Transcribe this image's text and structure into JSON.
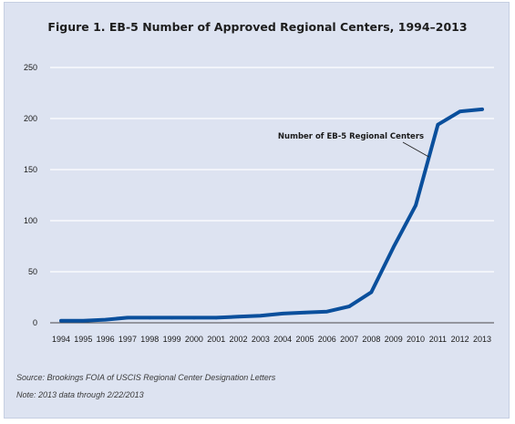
{
  "chart_data": {
    "type": "line",
    "title": "Figure 1. EB-5 Number of Approved Regional Centers, 1994–2013",
    "xlabel": "",
    "ylabel": "",
    "x": [
      1994,
      1995,
      1996,
      1997,
      1998,
      1999,
      2000,
      2001,
      2002,
      2003,
      2004,
      2005,
      2006,
      2007,
      2008,
      2009,
      2010,
      2011,
      2012,
      2013
    ],
    "series": [
      {
        "name": "Number of EB-5 Regional Centers",
        "values": [
          2,
          2,
          3,
          5,
          5,
          5,
          5,
          5,
          6,
          7,
          9,
          10,
          11,
          16,
          30,
          74,
          115,
          194,
          207,
          209
        ]
      }
    ],
    "ylim": [
      0,
      250
    ],
    "yticks": [
      0,
      50,
      100,
      150,
      200,
      250
    ],
    "xtick_labels": [
      "1994",
      "1995",
      "1996",
      "1997",
      "1998",
      "1999",
      "2000",
      "2001",
      "2002",
      "2003",
      "2004",
      "2005",
      "2006",
      "2007",
      "2008",
      "2009",
      "2010",
      "2011",
      "2012",
      "2013"
    ],
    "grid": true,
    "line_color": "#0a4f9c",
    "annotation": {
      "text": "Number of EB-5 Regional Centers",
      "points_to_year": 2010.6
    }
  },
  "notes": {
    "source": "Source: Brookings FOIA of USCIS Regional Center Designation Letters",
    "note": "Note: 2013 data through 2/22/2013"
  }
}
